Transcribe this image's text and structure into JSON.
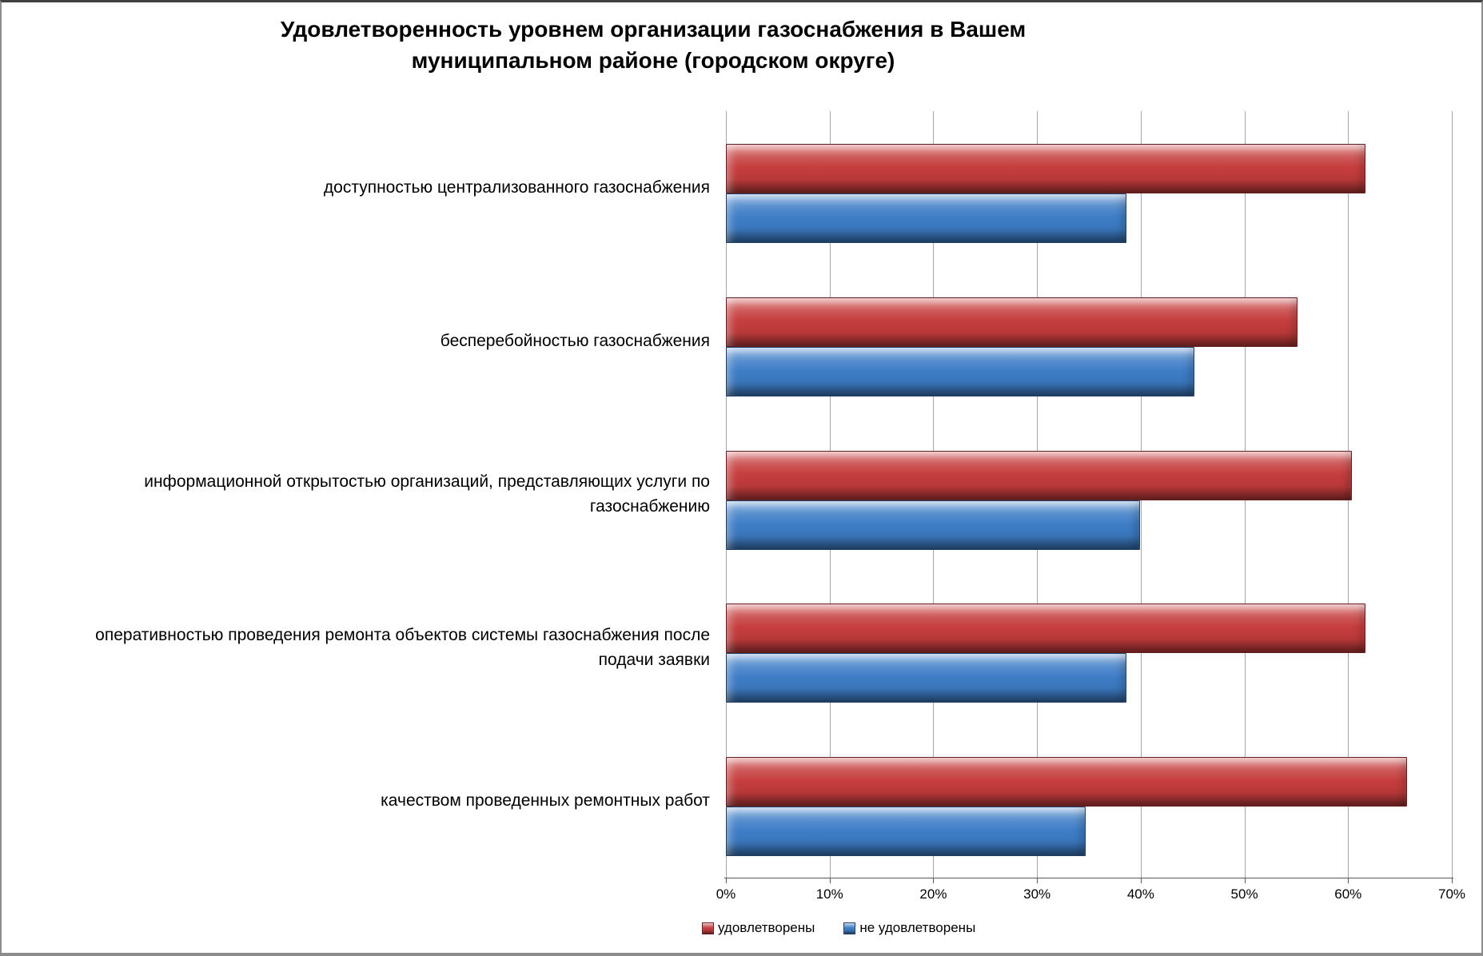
{
  "chart_data": {
    "type": "bar",
    "orientation": "horizontal",
    "title": "Удовлетворенность уровнем организации газоснабжения в Вашем муниципальном районе (городском округе)",
    "categories": [
      "доступностью централизованного газоснабжения",
      "бесперебойностью  газоснабжения",
      "информационной открытостью организаций, представляющих услуги по газоснабжению",
      "оперативностью проведения ремонта объектов системы газоснабжения после подачи заявки",
      "качеством проведенных ремонтных работ"
    ],
    "series": [
      {
        "name": "удовлетворены",
        "color": "#C63D3D",
        "values": [
          61.5,
          55,
          60.2,
          61.5,
          65.5
        ]
      },
      {
        "name": "не удовлетворены",
        "color": "#3E7DC7",
        "values": [
          38.5,
          45,
          39.8,
          38.5,
          34.5
        ]
      }
    ],
    "xlim": [
      0,
      70
    ],
    "x_tick_labels": [
      "0%",
      "10%",
      "20%",
      "30%",
      "40%",
      "50%",
      "60%",
      "70%"
    ],
    "grid": true,
    "legend_position": "bottom",
    "gridline_color": "#A6A6A6",
    "axis_color": "#595959",
    "background_color": "#FFFFFF"
  }
}
